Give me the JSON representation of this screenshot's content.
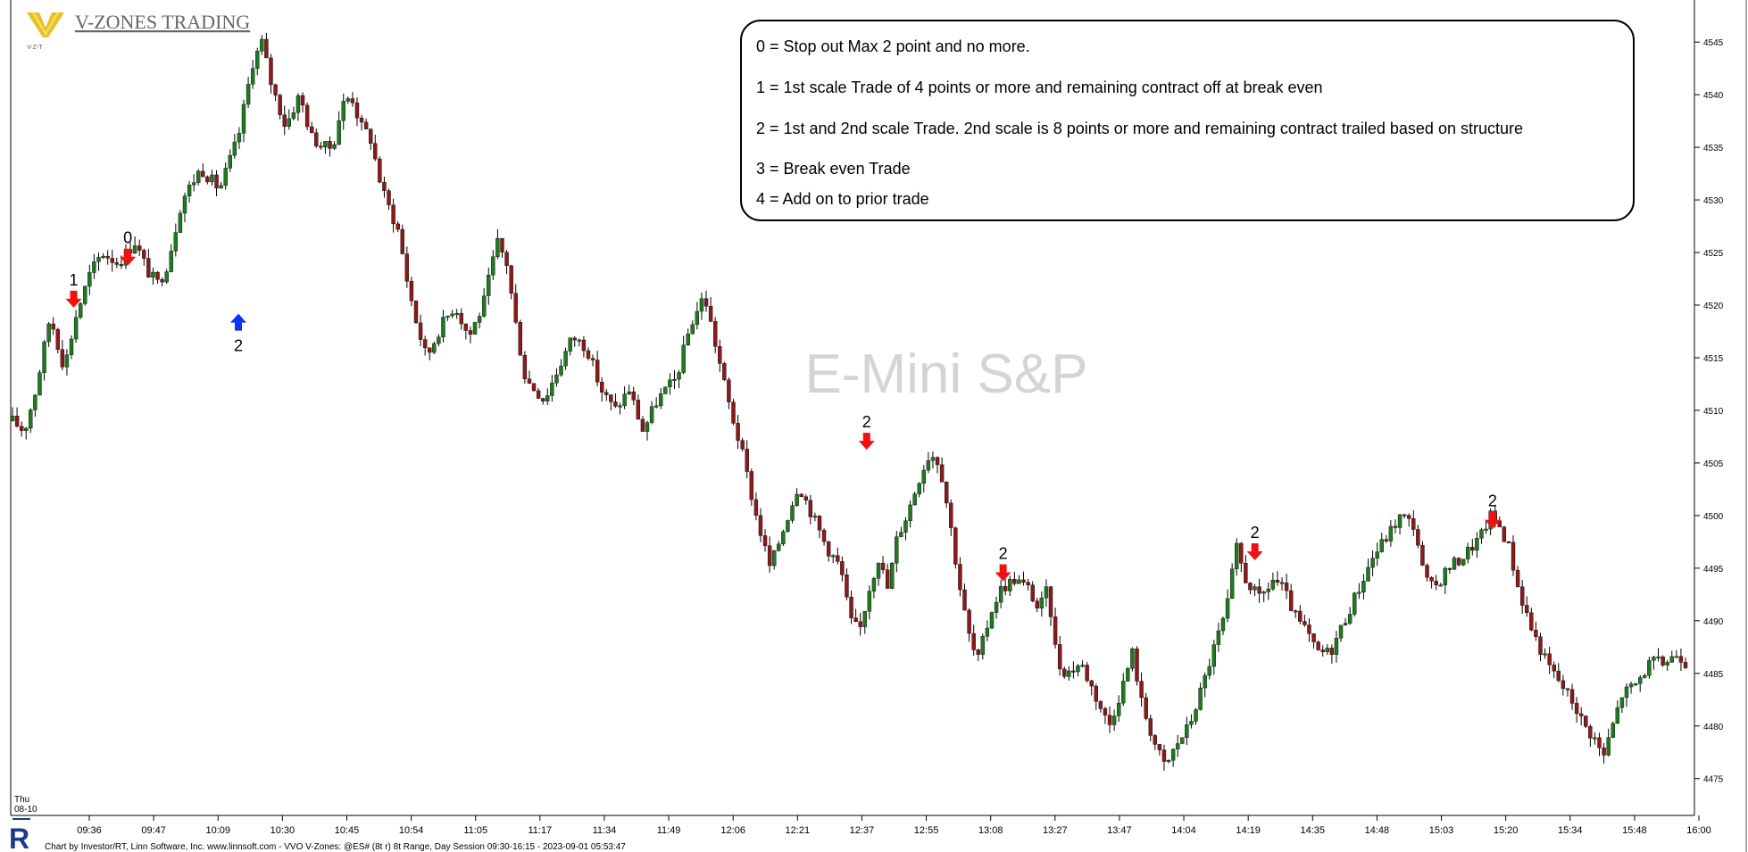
{
  "brand": {
    "name": "V-ZONES TRADING",
    "logo_text": "V-Z-T",
    "logo_icon": "v-zones-logo-icon"
  },
  "watermark": "E-Mini S&P",
  "legend": {
    "lines": [
      "0 = Stop out  Max 2 point and no more.",
      "1 = 1st scale Trade of 4 points or more and remaining contract off at break even",
      "2 = 1st and 2nd scale Trade. 2nd scale is 8 points or more and remaining contract trailed based on structure",
      "3 = Break even Trade",
      "4 = Add  on to prior trade"
    ]
  },
  "footer": {
    "credit": "Chart by Investor/RT, Linn Software, Inc. www.linnsoft.com - VVO V-Zones: @ES# (8t r) 8t Range, Day Session 09:30-16:15 - 2023-09-01 05:53:47",
    "logo_icon": "investor-rt-logo-icon"
  },
  "colors": {
    "up": "#1f7a1f",
    "down": "#8b1a1a",
    "sell_arrow": "#ee1111",
    "buy_arrow": "#1133ee",
    "watermark": "#d4d4d4"
  },
  "chart_data": {
    "type": "candlestick",
    "title": "",
    "x_start_label": [
      "Thu",
      "08-10"
    ],
    "x_ticks": [
      "09:36",
      "09:47",
      "10:09",
      "10:30",
      "10:45",
      "10:54",
      "11:05",
      "11:17",
      "11:34",
      "11:49",
      "12:06",
      "12:21",
      "12:37",
      "12:55",
      "13:08",
      "13:27",
      "13:47",
      "14:04",
      "14:19",
      "14:35",
      "14:48",
      "15:03",
      "15:20",
      "15:34",
      "15:48",
      "16:00"
    ],
    "y_ticks": [
      4545,
      4540,
      4535,
      4530,
      4525,
      4520,
      4515,
      4510,
      4505,
      4500,
      4495,
      4490,
      4485,
      4480,
      4475
    ],
    "ylim": [
      4471.5,
      4549
    ],
    "bar_count": 370,
    "price_path": [
      [
        0,
        4509
      ],
      [
        5,
        4508
      ],
      [
        10,
        4512
      ],
      [
        16,
        4519
      ],
      [
        22,
        4514
      ],
      [
        27,
        4519
      ],
      [
        33,
        4523
      ],
      [
        38,
        4525
      ],
      [
        45,
        4524
      ],
      [
        52,
        4526
      ],
      [
        58,
        4523
      ],
      [
        62,
        4522
      ],
      [
        66,
        4524
      ],
      [
        72,
        4530
      ],
      [
        80,
        4533
      ],
      [
        88,
        4531
      ],
      [
        96,
        4536
      ],
      [
        102,
        4543
      ],
      [
        106,
        4545
      ],
      [
        110,
        4541
      ],
      [
        116,
        4537
      ],
      [
        122,
        4540
      ],
      [
        127,
        4536
      ],
      [
        132,
        4535
      ],
      [
        136,
        4535
      ],
      [
        140,
        4539
      ],
      [
        144,
        4540
      ],
      [
        148,
        4537
      ],
      [
        152,
        4536
      ],
      [
        157,
        4531
      ],
      [
        164,
        4527
      ],
      [
        168,
        4522
      ],
      [
        172,
        4518
      ],
      [
        176,
        4515
      ],
      [
        182,
        4518
      ],
      [
        188,
        4520
      ],
      [
        194,
        4517
      ],
      [
        200,
        4520
      ],
      [
        206,
        4526
      ],
      [
        210,
        4524
      ],
      [
        214,
        4518
      ],
      [
        218,
        4513
      ],
      [
        226,
        4511
      ],
      [
        232,
        4514
      ],
      [
        238,
        4517
      ],
      [
        244,
        4516
      ],
      [
        250,
        4512
      ],
      [
        256,
        4510
      ],
      [
        262,
        4512
      ],
      [
        268,
        4508
      ],
      [
        274,
        4511
      ],
      [
        282,
        4513
      ],
      [
        288,
        4518
      ],
      [
        294,
        4521
      ],
      [
        300,
        4515
      ],
      [
        304,
        4511
      ],
      [
        310,
        4506
      ],
      [
        316,
        4500
      ],
      [
        322,
        4495
      ],
      [
        328,
        4499
      ],
      [
        334,
        4503
      ],
      [
        340,
        4500
      ],
      [
        346,
        4497
      ],
      [
        352,
        4495
      ],
      [
        356,
        4490
      ],
      [
        360,
        4489
      ],
      [
        364,
        4493
      ],
      [
        368,
        4496
      ],
      [
        372,
        4493
      ],
      [
        376,
        4498
      ],
      [
        380,
        4500
      ],
      [
        386,
        4504
      ],
      [
        390,
        4506
      ],
      [
        394,
        4505
      ],
      [
        398,
        4500
      ],
      [
        402,
        4494
      ],
      [
        406,
        4489
      ],
      [
        410,
        4486
      ],
      [
        416,
        4491
      ],
      [
        420,
        4493
      ],
      [
        426,
        4494
      ],
      [
        432,
        4493
      ],
      [
        436,
        4491
      ],
      [
        440,
        4493
      ],
      [
        444,
        4486
      ],
      [
        448,
        4485
      ],
      [
        454,
        4486
      ],
      [
        460,
        4483
      ],
      [
        466,
        4480
      ],
      [
        472,
        4484
      ],
      [
        476,
        4487
      ],
      [
        480,
        4482
      ],
      [
        486,
        4478
      ],
      [
        490,
        4476
      ],
      [
        494,
        4478
      ],
      [
        500,
        4480
      ],
      [
        506,
        4484
      ],
      [
        510,
        4487
      ],
      [
        516,
        4491
      ],
      [
        520,
        4497
      ],
      [
        524,
        4494
      ],
      [
        530,
        4492
      ],
      [
        536,
        4494
      ],
      [
        540,
        4493
      ],
      [
        546,
        4490
      ],
      [
        550,
        4489
      ],
      [
        554,
        4487
      ],
      [
        560,
        4487
      ],
      [
        566,
        4490
      ],
      [
        572,
        4493
      ],
      [
        578,
        4496
      ],
      [
        584,
        4498
      ],
      [
        590,
        4500
      ],
      [
        596,
        4499
      ],
      [
        600,
        4494
      ],
      [
        604,
        4493
      ],
      [
        610,
        4495
      ],
      [
        616,
        4496
      ],
      [
        620,
        4497
      ],
      [
        624,
        4498
      ],
      [
        628,
        4500
      ],
      [
        632,
        4499
      ],
      [
        636,
        4497
      ],
      [
        640,
        4493
      ],
      [
        646,
        4489
      ],
      [
        652,
        4486
      ],
      [
        658,
        4484
      ],
      [
        664,
        4482
      ],
      [
        668,
        4480
      ],
      [
        672,
        4479
      ],
      [
        676,
        4477
      ],
      [
        680,
        4480
      ],
      [
        684,
        4483
      ],
      [
        690,
        4484
      ],
      [
        696,
        4486
      ],
      [
        702,
        4486
      ],
      [
        708,
        4487
      ],
      [
        711,
        4486
      ]
    ],
    "signals": [
      {
        "label": "1",
        "side": "sell",
        "time_index": 26,
        "price": 4519.5
      },
      {
        "label": "0",
        "side": "sell",
        "time_index": 49,
        "price": 4523.5
      },
      {
        "label": "2",
        "side": "buy",
        "time_index": 96,
        "price": 4520.2
      },
      {
        "label": "2",
        "side": "sell",
        "time_index": 363,
        "price": 4506.0
      },
      {
        "label": "2",
        "side": "sell",
        "time_index": 421,
        "price": 4493.5
      },
      {
        "label": "2",
        "side": "sell",
        "time_index": 528,
        "price": 4495.5
      },
      {
        "label": "2",
        "side": "sell",
        "time_index": 629,
        "price": 4498.5
      }
    ]
  }
}
